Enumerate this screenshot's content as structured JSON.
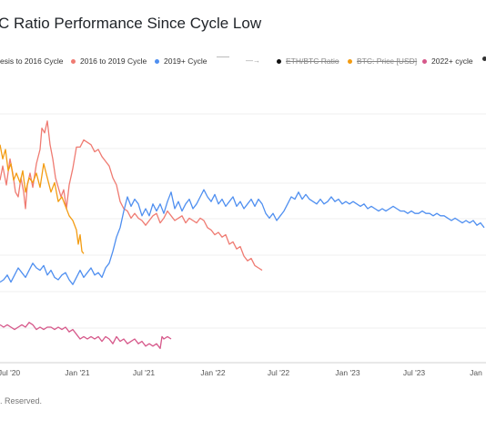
{
  "title": "C Ratio Performance Since Cycle Low",
  "footer": ". Reserved.",
  "legend": [
    {
      "label": "esis to 2016 Cycle",
      "color": "#4a4a4a",
      "hidden": false
    },
    {
      "label": "2016 to 2019 Cycle",
      "color": "#ef7b72",
      "hidden": false
    },
    {
      "label": "2019+ Cycle",
      "color": "#4f8ff0",
      "hidden": false
    },
    {
      "label": "",
      "color": "#bbbbbb",
      "hidden": false,
      "kind": "dash"
    },
    {
      "label": "",
      "color": "#999999",
      "hidden": false,
      "kind": "arrow"
    },
    {
      "label": "ETH/BTC Ratio",
      "color": "#111111",
      "hidden": true
    },
    {
      "label": "BTC: Price [USD]",
      "color": "#f39c12",
      "hidden": true
    },
    {
      "label": "2022+ cycle",
      "color": "#d6588a",
      "hidden": false
    }
  ],
  "chart_data": {
    "type": "line",
    "title": "C Ratio Performance Since Cycle Low",
    "xlabel": "",
    "ylabel": "",
    "x_ticks": [
      "Jul '20",
      "Jan '21",
      "Jul '21",
      "Jan '22",
      "Jul '22",
      "Jan '23",
      "Jul '23",
      "Jan"
    ],
    "grid": true,
    "series": [
      {
        "name": "2016 to 2019 Cycle",
        "color": "#ef7b72",
        "points": [
          [
            0,
            0.57
          ],
          [
            3,
            0.63
          ],
          [
            7,
            0.55
          ],
          [
            11,
            0.66
          ],
          [
            14,
            0.6
          ],
          [
            17,
            0.52
          ],
          [
            20,
            0.5
          ],
          [
            23,
            0.58
          ],
          [
            26,
            0.52
          ],
          [
            28,
            0.45
          ],
          [
            30,
            0.55
          ],
          [
            33,
            0.6
          ],
          [
            36,
            0.54
          ],
          [
            40,
            0.64
          ],
          [
            44,
            0.7
          ],
          [
            46,
            0.79
          ],
          [
            49,
            0.77
          ],
          [
            52,
            0.82
          ],
          [
            55,
            0.72
          ],
          [
            58,
            0.66
          ],
          [
            61,
            0.58
          ],
          [
            64,
            0.54
          ],
          [
            67,
            0.5
          ],
          [
            70,
            0.53
          ],
          [
            73,
            0.45
          ],
          [
            76,
            0.55
          ],
          [
            80,
            0.62
          ],
          [
            84,
            0.71
          ],
          [
            88,
            0.71
          ],
          [
            92,
            0.74
          ],
          [
            96,
            0.73
          ],
          [
            100,
            0.72
          ],
          [
            104,
            0.69
          ],
          [
            108,
            0.7
          ],
          [
            112,
            0.67
          ],
          [
            116,
            0.65
          ],
          [
            120,
            0.63
          ],
          [
            124,
            0.58
          ],
          [
            128,
            0.55
          ],
          [
            132,
            0.48
          ],
          [
            136,
            0.45
          ],
          [
            140,
            0.44
          ],
          [
            144,
            0.41
          ],
          [
            148,
            0.43
          ],
          [
            152,
            0.41
          ],
          [
            156,
            0.4
          ],
          [
            160,
            0.38
          ],
          [
            164,
            0.4
          ],
          [
            168,
            0.42
          ],
          [
            172,
            0.43
          ],
          [
            176,
            0.39
          ],
          [
            180,
            0.41
          ],
          [
            184,
            0.44
          ],
          [
            188,
            0.42
          ],
          [
            192,
            0.4
          ],
          [
            196,
            0.41
          ],
          [
            200,
            0.42
          ],
          [
            204,
            0.39
          ],
          [
            208,
            0.41
          ],
          [
            212,
            0.4
          ],
          [
            216,
            0.39
          ],
          [
            220,
            0.41
          ],
          [
            224,
            0.4
          ],
          [
            228,
            0.37
          ],
          [
            232,
            0.36
          ],
          [
            236,
            0.34
          ],
          [
            240,
            0.35
          ],
          [
            244,
            0.33
          ],
          [
            248,
            0.34
          ],
          [
            252,
            0.3
          ],
          [
            256,
            0.31
          ],
          [
            260,
            0.28
          ],
          [
            264,
            0.29
          ],
          [
            268,
            0.25
          ],
          [
            272,
            0.23
          ],
          [
            276,
            0.24
          ],
          [
            280,
            0.21
          ],
          [
            284,
            0.2
          ],
          [
            288,
            0.19
          ]
        ]
      },
      {
        "name": "BTC: Price [USD]",
        "color": "#f39c12",
        "points": [
          [
            0,
            0.72
          ],
          [
            3,
            0.66
          ],
          [
            6,
            0.7
          ],
          [
            9,
            0.61
          ],
          [
            12,
            0.64
          ],
          [
            15,
            0.57
          ],
          [
            18,
            0.6
          ],
          [
            22,
            0.56
          ],
          [
            25,
            0.61
          ],
          [
            28,
            0.52
          ],
          [
            32,
            0.58
          ],
          [
            36,
            0.56
          ],
          [
            40,
            0.6
          ],
          [
            44,
            0.54
          ],
          [
            48,
            0.64
          ],
          [
            52,
            0.58
          ],
          [
            56,
            0.52
          ],
          [
            60,
            0.56
          ],
          [
            64,
            0.48
          ],
          [
            68,
            0.5
          ],
          [
            72,
            0.46
          ],
          [
            76,
            0.42
          ],
          [
            80,
            0.4
          ],
          [
            84,
            0.36
          ],
          [
            86,
            0.3
          ],
          [
            88,
            0.34
          ],
          [
            90,
            0.27
          ],
          [
            92,
            0.26
          ]
        ]
      },
      {
        "name": "2019+ Cycle",
        "color": "#4f8ff0",
        "points": [
          [
            0,
            0.14
          ],
          [
            4,
            0.15
          ],
          [
            8,
            0.17
          ],
          [
            12,
            0.14
          ],
          [
            16,
            0.17
          ],
          [
            20,
            0.2
          ],
          [
            24,
            0.18
          ],
          [
            28,
            0.16
          ],
          [
            32,
            0.19
          ],
          [
            36,
            0.22
          ],
          [
            40,
            0.2
          ],
          [
            44,
            0.19
          ],
          [
            48,
            0.21
          ],
          [
            52,
            0.17
          ],
          [
            56,
            0.19
          ],
          [
            60,
            0.16
          ],
          [
            64,
            0.15
          ],
          [
            68,
            0.17
          ],
          [
            72,
            0.18
          ],
          [
            76,
            0.15
          ],
          [
            80,
            0.13
          ],
          [
            84,
            0.16
          ],
          [
            88,
            0.19
          ],
          [
            92,
            0.16
          ],
          [
            96,
            0.18
          ],
          [
            100,
            0.2
          ],
          [
            104,
            0.17
          ],
          [
            108,
            0.18
          ],
          [
            112,
            0.16
          ],
          [
            116,
            0.2
          ],
          [
            120,
            0.22
          ],
          [
            124,
            0.27
          ],
          [
            128,
            0.33
          ],
          [
            132,
            0.37
          ],
          [
            136,
            0.44
          ],
          [
            140,
            0.5
          ],
          [
            144,
            0.46
          ],
          [
            148,
            0.49
          ],
          [
            152,
            0.47
          ],
          [
            156,
            0.42
          ],
          [
            160,
            0.45
          ],
          [
            164,
            0.42
          ],
          [
            168,
            0.47
          ],
          [
            172,
            0.44
          ],
          [
            176,
            0.47
          ],
          [
            180,
            0.43
          ],
          [
            184,
            0.48
          ],
          [
            188,
            0.52
          ],
          [
            192,
            0.45
          ],
          [
            196,
            0.48
          ],
          [
            200,
            0.44
          ],
          [
            204,
            0.47
          ],
          [
            208,
            0.49
          ],
          [
            212,
            0.45
          ],
          [
            216,
            0.47
          ],
          [
            220,
            0.5
          ],
          [
            224,
            0.53
          ],
          [
            228,
            0.5
          ],
          [
            232,
            0.48
          ],
          [
            236,
            0.51
          ],
          [
            240,
            0.47
          ],
          [
            244,
            0.49
          ],
          [
            248,
            0.46
          ],
          [
            252,
            0.48
          ],
          [
            256,
            0.5
          ],
          [
            260,
            0.46
          ],
          [
            264,
            0.48
          ],
          [
            268,
            0.45
          ],
          [
            272,
            0.47
          ],
          [
            276,
            0.49
          ],
          [
            280,
            0.46
          ],
          [
            284,
            0.49
          ],
          [
            288,
            0.47
          ],
          [
            292,
            0.43
          ],
          [
            296,
            0.41
          ],
          [
            300,
            0.43
          ],
          [
            304,
            0.4
          ],
          [
            308,
            0.42
          ],
          [
            312,
            0.44
          ],
          [
            316,
            0.47
          ],
          [
            320,
            0.5
          ],
          [
            324,
            0.49
          ],
          [
            328,
            0.52
          ],
          [
            332,
            0.49
          ],
          [
            336,
            0.51
          ],
          [
            340,
            0.49
          ],
          [
            344,
            0.48
          ],
          [
            348,
            0.47
          ],
          [
            352,
            0.49
          ],
          [
            356,
            0.47
          ],
          [
            360,
            0.48
          ],
          [
            364,
            0.5
          ],
          [
            368,
            0.48
          ],
          [
            372,
            0.49
          ],
          [
            376,
            0.47
          ],
          [
            380,
            0.48
          ],
          [
            384,
            0.47
          ],
          [
            388,
            0.48
          ],
          [
            392,
            0.47
          ],
          [
            396,
            0.46
          ],
          [
            400,
            0.47
          ],
          [
            404,
            0.45
          ],
          [
            408,
            0.46
          ],
          [
            412,
            0.45
          ],
          [
            416,
            0.44
          ],
          [
            420,
            0.45
          ],
          [
            424,
            0.44
          ],
          [
            428,
            0.45
          ],
          [
            432,
            0.46
          ],
          [
            436,
            0.45
          ],
          [
            440,
            0.44
          ],
          [
            444,
            0.44
          ],
          [
            448,
            0.43
          ],
          [
            452,
            0.44
          ],
          [
            456,
            0.43
          ],
          [
            460,
            0.43
          ],
          [
            464,
            0.44
          ],
          [
            468,
            0.43
          ],
          [
            472,
            0.43
          ],
          [
            476,
            0.42
          ],
          [
            480,
            0.43
          ],
          [
            484,
            0.42
          ],
          [
            488,
            0.42
          ],
          [
            492,
            0.41
          ],
          [
            496,
            0.4
          ],
          [
            500,
            0.41
          ],
          [
            504,
            0.4
          ],
          [
            508,
            0.39
          ],
          [
            512,
            0.4
          ],
          [
            516,
            0.39
          ],
          [
            520,
            0.4
          ],
          [
            524,
            0.38
          ],
          [
            528,
            0.39
          ],
          [
            532,
            0.37
          ]
        ]
      },
      {
        "name": "2022+ cycle",
        "color": "#d6588a",
        "points": [
          [
            0,
            -0.04
          ],
          [
            4,
            -0.05
          ],
          [
            8,
            -0.04
          ],
          [
            12,
            -0.05
          ],
          [
            16,
            -0.06
          ],
          [
            20,
            -0.05
          ],
          [
            24,
            -0.04
          ],
          [
            28,
            -0.05
          ],
          [
            32,
            -0.03
          ],
          [
            36,
            -0.04
          ],
          [
            40,
            -0.06
          ],
          [
            44,
            -0.05
          ],
          [
            48,
            -0.06
          ],
          [
            52,
            -0.05
          ],
          [
            56,
            -0.05
          ],
          [
            60,
            -0.06
          ],
          [
            64,
            -0.05
          ],
          [
            68,
            -0.06
          ],
          [
            72,
            -0.05
          ],
          [
            76,
            -0.07
          ],
          [
            80,
            -0.06
          ],
          [
            84,
            -0.08
          ],
          [
            88,
            -0.1
          ],
          [
            92,
            -0.09
          ],
          [
            96,
            -0.1
          ],
          [
            100,
            -0.09
          ],
          [
            104,
            -0.1
          ],
          [
            108,
            -0.09
          ],
          [
            112,
            -0.11
          ],
          [
            116,
            -0.09
          ],
          [
            120,
            -0.1
          ],
          [
            124,
            -0.12
          ],
          [
            128,
            -0.09
          ],
          [
            132,
            -0.11
          ],
          [
            136,
            -0.1
          ],
          [
            140,
            -0.12
          ],
          [
            144,
            -0.11
          ],
          [
            148,
            -0.1
          ],
          [
            152,
            -0.12
          ],
          [
            156,
            -0.11
          ],
          [
            160,
            -0.13
          ],
          [
            164,
            -0.12
          ],
          [
            168,
            -0.13
          ],
          [
            172,
            -0.12
          ],
          [
            176,
            -0.14
          ],
          [
            178,
            -0.09
          ],
          [
            180,
            -0.1
          ],
          [
            184,
            -0.09
          ],
          [
            188,
            -0.1
          ]
        ]
      }
    ]
  }
}
